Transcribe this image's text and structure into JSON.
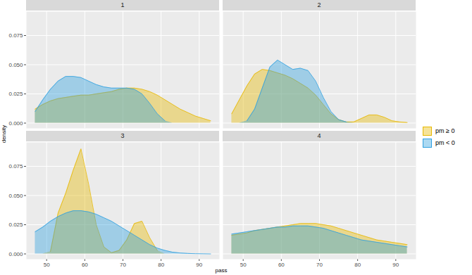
{
  "chart_data": {
    "type": "area",
    "x_label": "pass",
    "y_label": "density",
    "xlim": [
      44.7,
      95.3
    ],
    "xticks": [
      50,
      60,
      70,
      80,
      90
    ],
    "ylim": [
      -0.0045,
      0.0955
    ],
    "yticks": [
      {
        "value": 0,
        "label": "0.000"
      },
      {
        "value": 0.025,
        "label": "0.025"
      },
      {
        "value": 0.05,
        "label": "0.050"
      },
      {
        "value": 0.075,
        "label": "0.075"
      }
    ],
    "grid": true,
    "legend": "right",
    "x": [
      47,
      49,
      51,
      53,
      55,
      57,
      59,
      61,
      63,
      65,
      67,
      69,
      71,
      73,
      75,
      77,
      79,
      81,
      83,
      85,
      87,
      89,
      91,
      93
    ],
    "facets": [
      {
        "title": "1",
        "series": [
          {
            "name": "pm ≥ 0",
            "color": "#E7B800",
            "values": [
              0.012,
              0.016,
              0.019,
              0.021,
              0.022,
              0.023,
              0.024,
              0.024,
              0.025,
              0.026,
              0.027,
              0.029,
              0.03,
              0.03,
              0.029,
              0.027,
              0.024,
              0.02,
              0.016,
              0.012,
              0.009,
              0.006,
              0.004,
              0.002
            ]
          },
          {
            "name": "pm < 0",
            "color": "#2E9FDF",
            "values": [
              0.01,
              0.02,
              0.029,
              0.036,
              0.04,
              0.04,
              0.039,
              0.036,
              0.033,
              0.031,
              0.03,
              0.03,
              0.03,
              0.029,
              0.025,
              0.017,
              0.008,
              0.002,
              null,
              null,
              null,
              null,
              null,
              null
            ]
          }
        ]
      },
      {
        "title": "2",
        "series": [
          {
            "name": "pm ≥ 0",
            "color": "#E7B800",
            "values": [
              0.008,
              0.02,
              0.032,
              0.042,
              0.046,
              0.045,
              0.043,
              0.041,
              0.038,
              0.034,
              0.03,
              0.024,
              0.016,
              0.008,
              0.003,
              0.001,
              0.001,
              0.004,
              0.007,
              0.007,
              0.005,
              0.002,
              0.001,
              0.0005
            ]
          },
          {
            "name": "pm < 0",
            "color": "#2E9FDF",
            "values": [
              null,
              null,
              0.002,
              0.012,
              0.03,
              0.048,
              0.054,
              0.05,
              0.046,
              0.047,
              0.045,
              0.036,
              0.022,
              0.01,
              0.003,
              0.001,
              null,
              null,
              null,
              null,
              null,
              null,
              null,
              null
            ]
          }
        ]
      },
      {
        "title": "3",
        "series": [
          {
            "name": "pm ≥ 0",
            "color": "#E7B800",
            "values": [
              null,
              null,
              0.002,
              0.035,
              0.052,
              0.072,
              0.09,
              0.06,
              0.025,
              0.006,
              0.001,
              0.003,
              0.012,
              0.026,
              0.028,
              0.014,
              0.003,
              null,
              null,
              null,
              null,
              null,
              null,
              null
            ]
          },
          {
            "name": "pm < 0",
            "color": "#2E9FDF",
            "values": [
              0.019,
              0.023,
              0.028,
              0.032,
              0.035,
              0.037,
              0.037,
              0.036,
              0.034,
              0.031,
              0.028,
              0.024,
              0.02,
              0.016,
              0.012,
              0.008,
              0.005,
              0.003,
              0.0015,
              0.0008,
              0.0004,
              0.0002,
              0.0001,
              0
            ]
          }
        ]
      },
      {
        "title": "4",
        "series": [
          {
            "name": "pm ≥ 0",
            "color": "#E7B800",
            "values": [
              0.016,
              0.017,
              0.018,
              0.02,
              0.021,
              0.022,
              0.023,
              0.024,
              0.025,
              0.026,
              0.026,
              0.026,
              0.025,
              0.024,
              0.022,
              0.02,
              0.018,
              0.016,
              0.014,
              0.012,
              0.011,
              0.01,
              0.009,
              0.008
            ]
          },
          {
            "name": "pm < 0",
            "color": "#2E9FDF",
            "values": [
              0.017,
              0.018,
              0.019,
              0.02,
              0.021,
              0.022,
              0.023,
              0.023,
              0.024,
              0.024,
              0.024,
              0.023,
              0.022,
              0.02,
              0.018,
              0.016,
              0.014,
              0.012,
              0.011,
              0.01,
              0.009,
              0.008,
              0.007,
              0.006
            ]
          }
        ]
      }
    ]
  }
}
